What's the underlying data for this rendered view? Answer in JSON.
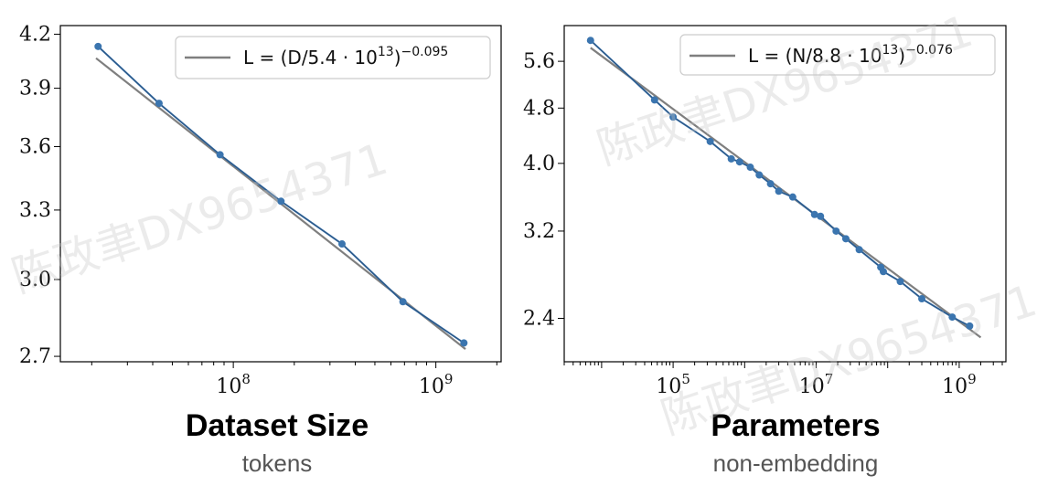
{
  "colors": {
    "data": "#3b75af",
    "fit": "#7f7f7f",
    "fit_overlap": "#1f3b5c",
    "axes": "#000000"
  },
  "watermark_text": "陈政聿DX9654371",
  "chart_data": [
    {
      "type": "line",
      "xscale": "log",
      "yscale": "log",
      "xlim": [
        14000000,
        2100000000
      ],
      "ylim": [
        2.68,
        4.25
      ],
      "x_ticks": [
        {
          "value": 100000000,
          "base": "10",
          "exp": "8"
        },
        {
          "value": 1000000000,
          "base": "10",
          "exp": "9"
        }
      ],
      "y_ticks": [
        {
          "value": 2.7,
          "label": "2.7"
        },
        {
          "value": 3.0,
          "label": "3.0"
        },
        {
          "value": 3.3,
          "label": "3.3"
        },
        {
          "value": 3.6,
          "label": "3.6"
        },
        {
          "value": 3.9,
          "label": "3.9"
        },
        {
          "value": 4.2,
          "label": "4.2"
        }
      ],
      "x": [
        21500000,
        43000000,
        86000000,
        172000000,
        344000000,
        688000000,
        1376000000
      ],
      "y": [
        4.13,
        3.82,
        3.56,
        3.34,
        3.15,
        2.91,
        2.75
      ],
      "fit": {
        "x_range": [
          21000000,
          1400000000
        ],
        "scale": 54000000000000,
        "exponent": -0.095
      },
      "legend_main": "L = (D/5.4 · 10",
      "legend_main_exp": "13",
      "legend_close": ")",
      "legend_exp": "−0.095",
      "legend_position": "upper right",
      "xlabel": "Dataset Size",
      "xlabel_sub": "tokens"
    },
    {
      "type": "line",
      "xscale": "log",
      "yscale": "log",
      "xlim": [
        3000,
        4500000000
      ],
      "ylim": [
        2.08,
        6.3
      ],
      "x_ticks": [
        {
          "value": 100000,
          "base": "10",
          "exp": "5"
        },
        {
          "value": 10000000,
          "base": "10",
          "exp": "7"
        },
        {
          "value": 1000000000,
          "base": "10",
          "exp": "9"
        }
      ],
      "y_ticks": [
        {
          "value": 2.4,
          "label": "2.4"
        },
        {
          "value": 3.2,
          "label": "3.2"
        },
        {
          "value": 4.0,
          "label": "4.0"
        },
        {
          "value": 4.8,
          "label": "4.8"
        },
        {
          "value": 5.6,
          "label": "5.6"
        }
      ],
      "x": [
        7000,
        55000,
        100000,
        330000,
        650000,
        850000,
        1200000,
        1600000,
        2300000,
        3000000,
        4700000,
        9500000,
        11500000,
        19000000,
        26000000,
        40000000,
        80000000,
        87000000,
        150000000,
        300000000,
        800000000,
        1400000000
      ],
      "y": [
        6.0,
        4.93,
        4.66,
        4.3,
        4.06,
        4.02,
        3.95,
        3.85,
        3.74,
        3.65,
        3.58,
        3.38,
        3.36,
        3.2,
        3.12,
        3.01,
        2.84,
        2.8,
        2.71,
        2.56,
        2.41,
        2.34
      ],
      "fit": {
        "x_range": [
          7000,
          2000000000
        ],
        "scale": 88000000000000,
        "exponent": -0.076
      },
      "legend_main": "L = (N/8.8 · 10",
      "legend_main_exp": "13",
      "legend_close": ")",
      "legend_exp": "−0.076",
      "legend_position": "upper right",
      "xlabel": "Parameters",
      "xlabel_sub": "non-embedding"
    }
  ]
}
